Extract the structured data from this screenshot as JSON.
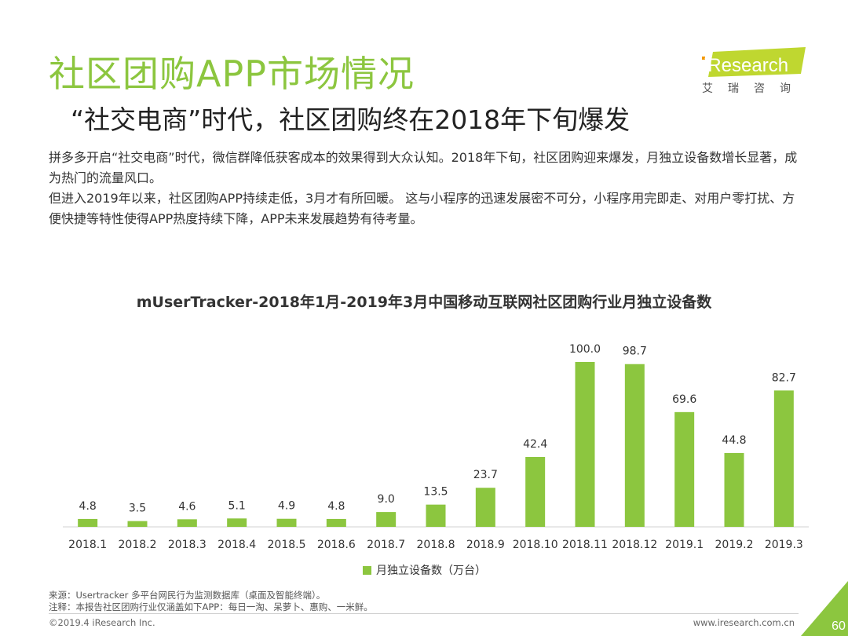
{
  "header": {
    "title": "社区团购APP市场情况",
    "subtitle": "“社交电商”时代，社区团购终在2018年下旬爆发"
  },
  "logo": {
    "brand": "iResearch",
    "tagline": "艾瑞咨询"
  },
  "body": {
    "para1": "拼多多开启“社交电商”时代，微信群降低获客成本的效果得到大众认知。2018年下旬，社区团购迎来爆发，月独立设备数增长显著，成为热门的流量风口。",
    "para2": "但进入2019年以来，社区团购APP持续走低，3月才有所回暖。 这与小程序的迅速发展密不可分，小程序用完即走、对用户零打扰、方便快捷等特性使得APP热度持续下降，APP未来发展趋势有待考量。"
  },
  "chart_data": {
    "type": "bar",
    "title": "mUserTracker-2018年1月-2019年3月中国移动互联网社区团购行业月独立设备数",
    "categories": [
      "2018.1",
      "2018.2",
      "2018.3",
      "2018.4",
      "2018.5",
      "2018.6",
      "2018.7",
      "2018.8",
      "2018.9",
      "2018.10",
      "2018.11",
      "2018.12",
      "2019.1",
      "2019.2",
      "2019.3"
    ],
    "series": [
      {
        "name": "月独立设备数（万台）",
        "values": [
          4.8,
          3.5,
          4.6,
          5.1,
          4.9,
          4.8,
          9.0,
          13.5,
          23.7,
          42.4,
          100.0,
          98.7,
          69.6,
          44.8,
          82.7
        ]
      }
    ],
    "value_labels": [
      "4.8",
      "3.5",
      "4.6",
      "5.1",
      "4.9",
      "4.8",
      "9.0",
      "13.5",
      "23.7",
      "42.4",
      "100.0",
      "98.7",
      "69.6",
      "44.8",
      "82.7"
    ],
    "ylim": [
      0,
      100
    ],
    "grid": false,
    "legend": "bottom",
    "color": "#8cc63f"
  },
  "footer": {
    "source": "来源：Usertracker 多平台网民行为监测数据库（桌面及智能终端）。",
    "note": "注释：本报告社区团购行业仅涵盖如下APP：每日一淘、呆萝卜、惠购、一米鲜。",
    "copyright": "©2019.4 iResearch Inc.",
    "url": "www.iresearch.com.cn",
    "page": "60"
  },
  "colors": {
    "accent": "#8cc63f",
    "logo_band": "#bfd730"
  }
}
